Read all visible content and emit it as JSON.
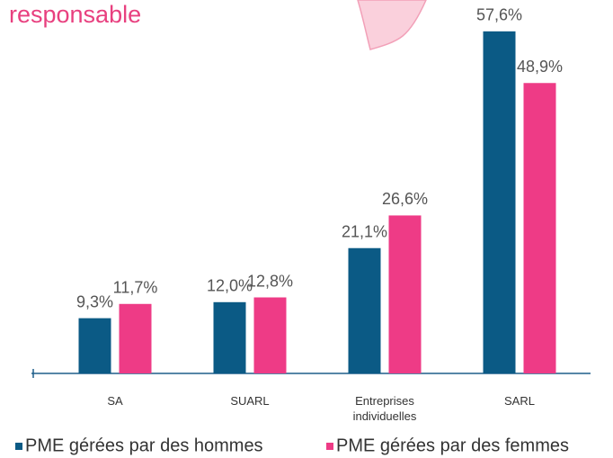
{
  "chart_data": {
    "type": "bar",
    "title": "responsable",
    "categories": [
      "SA",
      "SUARL",
      "Entreprises individuelles",
      "SARL"
    ],
    "series": [
      {
        "name": "PME gérées par des hommes",
        "color": "#0b5a85",
        "values": [
          9.3,
          12.0,
          21.1,
          57.6
        ],
        "value_labels": [
          "9,3%",
          "12,0%",
          "21,1%",
          "57,6%"
        ]
      },
      {
        "name": "PME gérées par des femmes",
        "color": "#ee3b86",
        "values": [
          11.7,
          12.8,
          26.6,
          48.9
        ],
        "value_labels": [
          "11,7%",
          "12,8%",
          "26,6%",
          "48,9%"
        ]
      }
    ],
    "ylim": [
      0,
      60
    ]
  }
}
